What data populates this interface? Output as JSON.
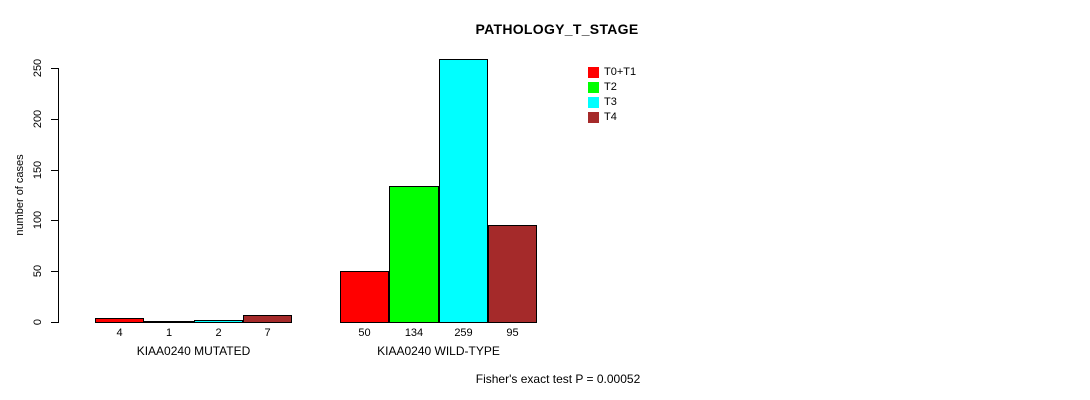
{
  "chart_data": {
    "type": "bar",
    "title": "PATHOLOGY_T_STAGE",
    "ylabel": "number of cases",
    "xlabel": "",
    "ylim": [
      0,
      250
    ],
    "yticks": [
      0,
      50,
      100,
      150,
      200,
      250
    ],
    "grid": false,
    "legend_position": "upper-right",
    "bar_value_labels": true,
    "categories": [
      "KIAA0240 MUTATED",
      "KIAA0240 WILD-TYPE"
    ],
    "series": [
      {
        "name": "T0+T1",
        "color": "#FF0000",
        "values": [
          4,
          50
        ]
      },
      {
        "name": "T2",
        "color": "#00FF00",
        "values": [
          1,
          134
        ]
      },
      {
        "name": "T3",
        "color": "#00FFFF",
        "values": [
          2,
          259
        ]
      },
      {
        "name": "T4",
        "color": "#A52A2A",
        "values": [
          7,
          95
        ]
      }
    ],
    "annotation": "Fisher's exact test P = 0.00052",
    "colors": {
      "axis": "#000000",
      "background": "#FFFFFF",
      "bar_border": "#000000"
    }
  }
}
